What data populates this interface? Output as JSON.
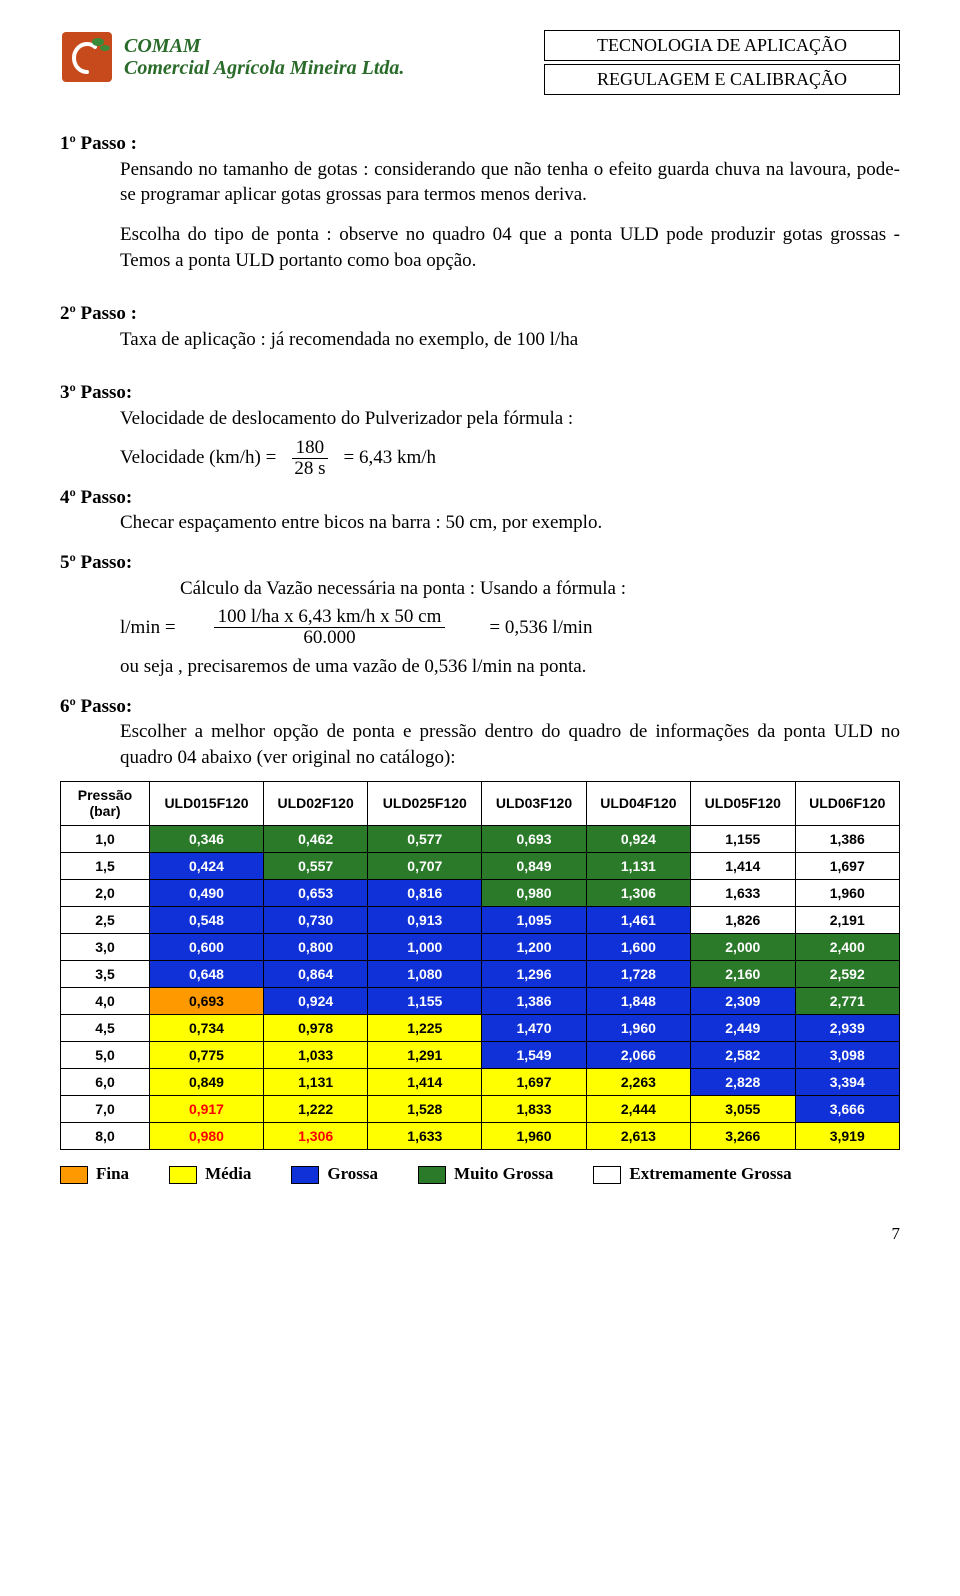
{
  "header": {
    "company_line1": "COMAM",
    "company_line2": "Comercial Agrícola Mineira Ltda.",
    "company_color": "#2a6b2a",
    "box1": "TECNOLOGIA DE APLICAÇÃO",
    "box2": "REGULAGEM E CALIBRAÇÃO"
  },
  "passo1": {
    "title": "1º Passo :",
    "para1": "Pensando no tamanho de gotas : considerando que não tenha  o efeito guarda chuva na lavoura,   pode-se programar aplicar gotas grossas para termos menos deriva.",
    "para2": "Escolha do tipo de ponta : observe no quadro 04   que a ponta ULD   pode produzir gotas grossas - Temos a ponta ULD portanto como boa   opção."
  },
  "passo2": {
    "title": "2º Passo :",
    "text": "Taxa de aplicação : já recomendada no exemplo,  de 100 l/ha"
  },
  "passo3": {
    "title": "3º Passo:",
    "text": "Velocidade de deslocamento do Pulverizador  pela fórmula :",
    "formula_label": "Velocidade (km/h)  =",
    "formula_num": "180",
    "formula_den": "28 s",
    "formula_result": "= 6,43 km/h"
  },
  "passo4": {
    "title": "4º Passo:",
    "text": "Checar espaçamento entre bicos na barra : 50 cm,  por exemplo."
  },
  "passo5": {
    "title": "5º Passo:",
    "lead": "Cálculo da Vazão necessária na ponta : Usando a fórmula :",
    "formula_label": "l/min =",
    "formula_num": "100 l/ha x 6,43 km/h x 50 cm",
    "formula_den": "60.000",
    "formula_result": "=  0,536 l/min",
    "tail": "ou seja ,  precisaremos de uma vazão de 0,536 l/min na ponta."
  },
  "passo6": {
    "title": "6º Passo:",
    "text": "Escolher a melhor opção de ponta e pressão dentro do quadro de informações da ponta ULD no quadro 04 abaixo (ver original no catálogo):"
  },
  "table": {
    "pressao_label1": "Pressão",
    "pressao_label2": "(bar)",
    "columns": [
      "ULD015F120",
      "ULD02F120",
      "ULD025F120",
      "ULD03F120",
      "ULD04F120",
      "ULD05F120",
      "ULD06F120"
    ],
    "rows": [
      {
        "p": "1,0",
        "cells": [
          {
            "v": "0,346",
            "bg": "#2a7a2a",
            "fg": "#ffffff"
          },
          {
            "v": "0,462",
            "bg": "#2a7a2a",
            "fg": "#ffffff"
          },
          {
            "v": "0,577",
            "bg": "#2a7a2a",
            "fg": "#ffffff"
          },
          {
            "v": "0,693",
            "bg": "#2a7a2a",
            "fg": "#ffffff"
          },
          {
            "v": "0,924",
            "bg": "#2a7a2a",
            "fg": "#ffffff"
          },
          {
            "v": "1,155",
            "bg": "#ffffff",
            "fg": "#000000"
          },
          {
            "v": "1,386",
            "bg": "#ffffff",
            "fg": "#000000"
          }
        ]
      },
      {
        "p": "1,5",
        "cells": [
          {
            "v": "0,424",
            "bg": "#1030d8",
            "fg": "#ffffff"
          },
          {
            "v": "0,557",
            "bg": "#2a7a2a",
            "fg": "#ffffff"
          },
          {
            "v": "0,707",
            "bg": "#2a7a2a",
            "fg": "#ffffff"
          },
          {
            "v": "0,849",
            "bg": "#2a7a2a",
            "fg": "#ffffff"
          },
          {
            "v": "1,131",
            "bg": "#2a7a2a",
            "fg": "#ffffff"
          },
          {
            "v": "1,414",
            "bg": "#ffffff",
            "fg": "#000000"
          },
          {
            "v": "1,697",
            "bg": "#ffffff",
            "fg": "#000000"
          }
        ]
      },
      {
        "p": "2,0",
        "cells": [
          {
            "v": "0,490",
            "bg": "#1030d8",
            "fg": "#ffffff"
          },
          {
            "v": "0,653",
            "bg": "#1030d8",
            "fg": "#ffffff"
          },
          {
            "v": "0,816",
            "bg": "#1030d8",
            "fg": "#ffffff"
          },
          {
            "v": "0,980",
            "bg": "#2a7a2a",
            "fg": "#ffffff"
          },
          {
            "v": "1,306",
            "bg": "#2a7a2a",
            "fg": "#ffffff"
          },
          {
            "v": "1,633",
            "bg": "#ffffff",
            "fg": "#000000"
          },
          {
            "v": "1,960",
            "bg": "#ffffff",
            "fg": "#000000"
          }
        ]
      },
      {
        "p": "2,5",
        "cells": [
          {
            "v": "0,548",
            "bg": "#1030d8",
            "fg": "#ffffff"
          },
          {
            "v": "0,730",
            "bg": "#1030d8",
            "fg": "#ffffff"
          },
          {
            "v": "0,913",
            "bg": "#1030d8",
            "fg": "#ffffff"
          },
          {
            "v": "1,095",
            "bg": "#1030d8",
            "fg": "#ffffff"
          },
          {
            "v": "1,461",
            "bg": "#1030d8",
            "fg": "#ffffff"
          },
          {
            "v": "1,826",
            "bg": "#ffffff",
            "fg": "#000000"
          },
          {
            "v": "2,191",
            "bg": "#ffffff",
            "fg": "#000000"
          }
        ]
      },
      {
        "p": "3,0",
        "cells": [
          {
            "v": "0,600",
            "bg": "#1030d8",
            "fg": "#ffffff"
          },
          {
            "v": "0,800",
            "bg": "#1030d8",
            "fg": "#ffffff"
          },
          {
            "v": "1,000",
            "bg": "#1030d8",
            "fg": "#ffffff"
          },
          {
            "v": "1,200",
            "bg": "#1030d8",
            "fg": "#ffffff"
          },
          {
            "v": "1,600",
            "bg": "#1030d8",
            "fg": "#ffffff"
          },
          {
            "v": "2,000",
            "bg": "#2a7a2a",
            "fg": "#ffffff"
          },
          {
            "v": "2,400",
            "bg": "#2a7a2a",
            "fg": "#ffffff"
          }
        ]
      },
      {
        "p": "3,5",
        "cells": [
          {
            "v": "0,648",
            "bg": "#1030d8",
            "fg": "#ffffff"
          },
          {
            "v": "0,864",
            "bg": "#1030d8",
            "fg": "#ffffff"
          },
          {
            "v": "1,080",
            "bg": "#1030d8",
            "fg": "#ffffff"
          },
          {
            "v": "1,296",
            "bg": "#1030d8",
            "fg": "#ffffff"
          },
          {
            "v": "1,728",
            "bg": "#1030d8",
            "fg": "#ffffff"
          },
          {
            "v": "2,160",
            "bg": "#2a7a2a",
            "fg": "#ffffff"
          },
          {
            "v": "2,592",
            "bg": "#2a7a2a",
            "fg": "#ffffff"
          }
        ]
      },
      {
        "p": "4,0",
        "cells": [
          {
            "v": "0,693",
            "bg": "#ff9900",
            "fg": "#000000"
          },
          {
            "v": "0,924",
            "bg": "#1030d8",
            "fg": "#ffffff"
          },
          {
            "v": "1,155",
            "bg": "#1030d8",
            "fg": "#ffffff"
          },
          {
            "v": "1,386",
            "bg": "#1030d8",
            "fg": "#ffffff"
          },
          {
            "v": "1,848",
            "bg": "#1030d8",
            "fg": "#ffffff"
          },
          {
            "v": "2,309",
            "bg": "#1030d8",
            "fg": "#ffffff"
          },
          {
            "v": "2,771",
            "bg": "#2a7a2a",
            "fg": "#ffffff"
          }
        ]
      },
      {
        "p": "4,5",
        "cells": [
          {
            "v": "0,734",
            "bg": "#ffff00",
            "fg": "#000000"
          },
          {
            "v": "0,978",
            "bg": "#ffff00",
            "fg": "#000000"
          },
          {
            "v": "1,225",
            "bg": "#ffff00",
            "fg": "#000000"
          },
          {
            "v": "1,470",
            "bg": "#1030d8",
            "fg": "#ffffff"
          },
          {
            "v": "1,960",
            "bg": "#1030d8",
            "fg": "#ffffff"
          },
          {
            "v": "2,449",
            "bg": "#1030d8",
            "fg": "#ffffff"
          },
          {
            "v": "2,939",
            "bg": "#1030d8",
            "fg": "#ffffff"
          }
        ]
      },
      {
        "p": "5,0",
        "cells": [
          {
            "v": "0,775",
            "bg": "#ffff00",
            "fg": "#000000"
          },
          {
            "v": "1,033",
            "bg": "#ffff00",
            "fg": "#000000"
          },
          {
            "v": "1,291",
            "bg": "#ffff00",
            "fg": "#000000"
          },
          {
            "v": "1,549",
            "bg": "#1030d8",
            "fg": "#ffffff"
          },
          {
            "v": "2,066",
            "bg": "#1030d8",
            "fg": "#ffffff"
          },
          {
            "v": "2,582",
            "bg": "#1030d8",
            "fg": "#ffffff"
          },
          {
            "v": "3,098",
            "bg": "#1030d8",
            "fg": "#ffffff"
          }
        ]
      },
      {
        "p": "6,0",
        "cells": [
          {
            "v": "0,849",
            "bg": "#ffff00",
            "fg": "#000000"
          },
          {
            "v": "1,131",
            "bg": "#ffff00",
            "fg": "#000000"
          },
          {
            "v": "1,414",
            "bg": "#ffff00",
            "fg": "#000000"
          },
          {
            "v": "1,697",
            "bg": "#ffff00",
            "fg": "#000000"
          },
          {
            "v": "2,263",
            "bg": "#ffff00",
            "fg": "#000000"
          },
          {
            "v": "2,828",
            "bg": "#1030d8",
            "fg": "#ffffff"
          },
          {
            "v": "3,394",
            "bg": "#1030d8",
            "fg": "#ffffff"
          }
        ]
      },
      {
        "p": "7,0",
        "cells": [
          {
            "v": "0,917",
            "bg": "#ffff00",
            "fg": "#ff0000"
          },
          {
            "v": "1,222",
            "bg": "#ffff00",
            "fg": "#000000"
          },
          {
            "v": "1,528",
            "bg": "#ffff00",
            "fg": "#000000"
          },
          {
            "v": "1,833",
            "bg": "#ffff00",
            "fg": "#000000"
          },
          {
            "v": "2,444",
            "bg": "#ffff00",
            "fg": "#000000"
          },
          {
            "v": "3,055",
            "bg": "#ffff00",
            "fg": "#000000"
          },
          {
            "v": "3,666",
            "bg": "#1030d8",
            "fg": "#ffffff"
          }
        ]
      },
      {
        "p": "8,0",
        "cells": [
          {
            "v": "0,980",
            "bg": "#ffff00",
            "fg": "#ff0000"
          },
          {
            "v": "1,306",
            "bg": "#ffff00",
            "fg": "#ff0000"
          },
          {
            "v": "1,633",
            "bg": "#ffff00",
            "fg": "#000000"
          },
          {
            "v": "1,960",
            "bg": "#ffff00",
            "fg": "#000000"
          },
          {
            "v": "2,613",
            "bg": "#ffff00",
            "fg": "#000000"
          },
          {
            "v": "3,266",
            "bg": "#ffff00",
            "fg": "#000000"
          },
          {
            "v": "3,919",
            "bg": "#ffff00",
            "fg": "#000000"
          }
        ]
      }
    ]
  },
  "legend": [
    {
      "label": "Fina",
      "color": "#ff9900"
    },
    {
      "label": "Média",
      "color": "#ffff00"
    },
    {
      "label": "Grossa",
      "color": "#1030d8"
    },
    {
      "label": "Muito Grossa",
      "color": "#2a7a2a"
    },
    {
      "label": "Extremamente Grossa",
      "color": "#ffffff"
    }
  ],
  "page_number": "7"
}
